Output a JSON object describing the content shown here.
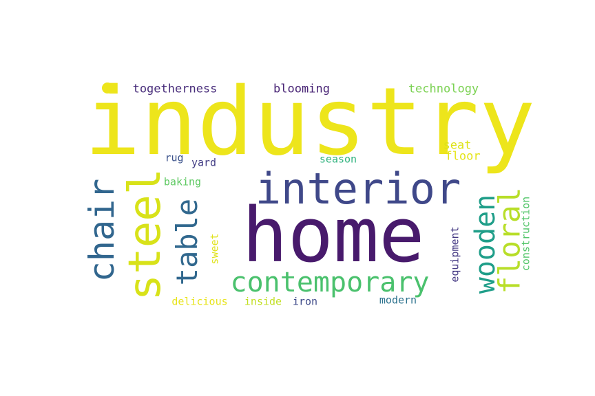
{
  "words": [
    {
      "id": "industry",
      "text": "industry",
      "color": "#ede51b",
      "orientation": "horizontal"
    },
    {
      "id": "home",
      "text": "home",
      "color": "#481a6c",
      "orientation": "horizontal"
    },
    {
      "id": "interior",
      "text": "interior",
      "color": "#3f4889",
      "orientation": "horizontal"
    },
    {
      "id": "contemporary",
      "text": "contemporary",
      "color": "#4ac16d",
      "orientation": "horizontal"
    },
    {
      "id": "steel",
      "text": "steel",
      "color": "#d8e219",
      "orientation": "vertical"
    },
    {
      "id": "chair",
      "text": "chair",
      "color": "#31668e",
      "orientation": "vertical"
    },
    {
      "id": "table",
      "text": "table",
      "color": "#31688e",
      "orientation": "vertical"
    },
    {
      "id": "wooden",
      "text": "wooden",
      "color": "#1f9e89",
      "orientation": "vertical"
    },
    {
      "id": "floral",
      "text": "floral",
      "color": "#b8de29",
      "orientation": "vertical"
    },
    {
      "id": "togetherness",
      "text": "togetherness",
      "color": "#472c7a",
      "orientation": "horizontal"
    },
    {
      "id": "blooming",
      "text": "blooming",
      "color": "#482475",
      "orientation": "horizontal"
    },
    {
      "id": "technology",
      "text": "technology",
      "color": "#7ad151",
      "orientation": "horizontal"
    },
    {
      "id": "seat",
      "text": "seat",
      "color": "#dde318",
      "orientation": "horizontal"
    },
    {
      "id": "floor",
      "text": "floor",
      "color": "#e4e419",
      "orientation": "horizontal"
    },
    {
      "id": "rug",
      "text": "rug",
      "color": "#3b528b",
      "orientation": "horizontal"
    },
    {
      "id": "yard",
      "text": "yard",
      "color": "#433e85",
      "orientation": "horizontal"
    },
    {
      "id": "season",
      "text": "season",
      "color": "#2db27d",
      "orientation": "horizontal"
    },
    {
      "id": "baking",
      "text": "baking",
      "color": "#5ec962",
      "orientation": "horizontal"
    },
    {
      "id": "sweet",
      "text": "sweet",
      "color": "#e0e21a",
      "orientation": "vertical"
    },
    {
      "id": "equipment",
      "text": "equipment",
      "color": "#443983",
      "orientation": "vertical"
    },
    {
      "id": "construction",
      "text": "construction",
      "color": "#52c569",
      "orientation": "vertical"
    },
    {
      "id": "delicious",
      "text": "delicious",
      "color": "#e7e419",
      "orientation": "horizontal"
    },
    {
      "id": "inside",
      "text": "inside",
      "color": "#c2df23",
      "orientation": "horizontal"
    },
    {
      "id": "iron",
      "text": "iron",
      "color": "#3e4a89",
      "orientation": "horizontal"
    },
    {
      "id": "modern",
      "text": "modern",
      "color": "#2c728e",
      "orientation": "horizontal"
    }
  ]
}
